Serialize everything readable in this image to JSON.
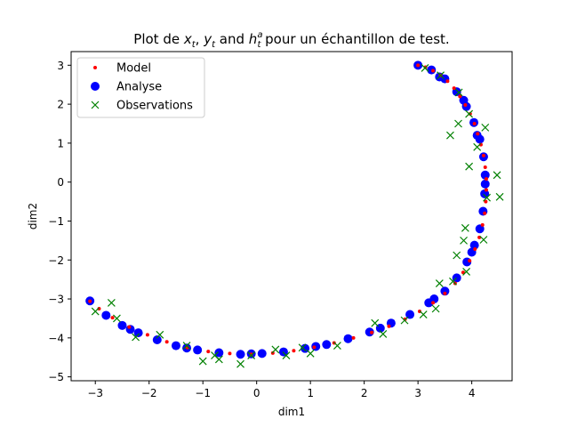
{
  "chart_data": {
    "type": "scatter",
    "title": {
      "prefix": "Plot de ",
      "v1": "x",
      "v1_sub": "t",
      "sep": ", ",
      "v2": "y",
      "v2_sub": "t",
      "mid": " and ",
      "v3": "h",
      "v3_sub": "t",
      "v3_sup": "a",
      "suffix": " pour un échantillon de test."
    },
    "xlabel": "dim1",
    "ylabel": "dim2",
    "xlim": [
      -3.45,
      4.75
    ],
    "ylim": [
      -5.1,
      3.35
    ],
    "xticks": [
      -3,
      -2,
      -1,
      0,
      1,
      2,
      3,
      4
    ],
    "yticks": [
      -5,
      -4,
      -3,
      -2,
      -1,
      0,
      1,
      2,
      3
    ],
    "xtick_labels": [
      "−3",
      "−2",
      "−1",
      "0",
      "1",
      "2",
      "3",
      "4"
    ],
    "ytick_labels": [
      "−5",
      "−4",
      "−3",
      "−2",
      "−1",
      "0",
      "1",
      "2",
      "3"
    ],
    "grid": false,
    "legend": {
      "position": "top-left",
      "entries": [
        "Model",
        "Analyse",
        "Observations"
      ]
    },
    "series": [
      {
        "name": "Model",
        "marker": "small-dot",
        "color": "#ff0000",
        "points": [
          [
            3.0,
            3.0
          ],
          [
            3.14,
            2.95
          ],
          [
            3.28,
            2.86
          ],
          [
            3.42,
            2.74
          ],
          [
            3.55,
            2.59
          ],
          [
            3.67,
            2.41
          ],
          [
            3.78,
            2.2
          ],
          [
            3.88,
            1.98
          ],
          [
            3.97,
            1.75
          ],
          [
            4.05,
            1.5
          ],
          [
            4.11,
            1.24
          ],
          [
            4.17,
            0.96
          ],
          [
            4.22,
            0.68
          ],
          [
            4.25,
            0.38
          ],
          [
            4.27,
            0.08
          ],
          [
            4.27,
            -0.2
          ],
          [
            4.26,
            -0.5
          ],
          [
            4.24,
            -0.8
          ],
          [
            4.2,
            -1.1
          ],
          [
            4.14,
            -1.42
          ],
          [
            4.06,
            -1.72
          ],
          [
            3.96,
            -2.02
          ],
          [
            3.84,
            -2.32
          ],
          [
            3.69,
            -2.6
          ],
          [
            3.5,
            -2.86
          ],
          [
            3.28,
            -3.1
          ],
          [
            3.03,
            -3.32
          ],
          [
            2.76,
            -3.52
          ],
          [
            2.46,
            -3.7
          ],
          [
            2.14,
            -3.86
          ],
          [
            1.8,
            -4.0
          ],
          [
            1.44,
            -4.13
          ],
          [
            1.07,
            -4.24
          ],
          [
            0.69,
            -4.33
          ],
          [
            0.3,
            -4.39
          ],
          [
            -0.1,
            -4.42
          ],
          [
            -0.5,
            -4.4
          ],
          [
            -0.9,
            -4.35
          ],
          [
            -1.29,
            -4.25
          ],
          [
            -1.67,
            -4.1
          ],
          [
            -2.03,
            -3.92
          ],
          [
            -2.37,
            -3.72
          ],
          [
            -2.68,
            -3.48
          ],
          [
            -2.93,
            -3.25
          ],
          [
            -3.1,
            -3.06
          ]
        ]
      },
      {
        "name": "Analyse",
        "marker": "dot",
        "color": "#0000ff",
        "points": [
          [
            3.0,
            3.0
          ],
          [
            3.25,
            2.88
          ],
          [
            3.5,
            2.65
          ],
          [
            3.72,
            2.32
          ],
          [
            3.9,
            1.94
          ],
          [
            4.04,
            1.53
          ],
          [
            4.15,
            1.1
          ],
          [
            4.22,
            0.65
          ],
          [
            4.25,
            0.18
          ],
          [
            4.24,
            -0.3
          ],
          [
            4.21,
            -0.75
          ],
          [
            4.15,
            -1.2
          ],
          [
            4.05,
            -1.62
          ],
          [
            3.91,
            -2.05
          ],
          [
            3.72,
            -2.46
          ],
          [
            3.5,
            -2.8
          ],
          [
            3.2,
            -3.1
          ],
          [
            2.85,
            -3.4
          ],
          [
            2.5,
            -3.62
          ],
          [
            2.1,
            -3.85
          ],
          [
            1.7,
            -4.02
          ],
          [
            1.3,
            -4.17
          ],
          [
            0.9,
            -4.27
          ],
          [
            0.5,
            -4.36
          ],
          [
            0.1,
            -4.4
          ],
          [
            -0.3,
            -4.42
          ],
          [
            -0.7,
            -4.38
          ],
          [
            -1.1,
            -4.31
          ],
          [
            -1.5,
            -4.2
          ],
          [
            -1.85,
            -4.05
          ],
          [
            -2.2,
            -3.87
          ],
          [
            -2.5,
            -3.68
          ],
          [
            -2.8,
            -3.42
          ],
          [
            -3.1,
            -3.05
          ],
          [
            3.4,
            2.7
          ],
          [
            3.85,
            2.1
          ],
          [
            4.1,
            1.2
          ],
          [
            4.25,
            -0.05
          ],
          [
            4.0,
            -1.8
          ],
          [
            3.3,
            -3.0
          ],
          [
            2.3,
            -3.75
          ],
          [
            1.1,
            -4.22
          ],
          [
            -0.1,
            -4.41
          ],
          [
            -1.3,
            -4.26
          ],
          [
            -2.35,
            -3.78
          ]
        ]
      },
      {
        "name": "Observations",
        "marker": "x",
        "color": "#008000",
        "points": [
          [
            3.13,
            2.93
          ],
          [
            3.42,
            2.74
          ],
          [
            3.76,
            2.3
          ],
          [
            3.95,
            1.75
          ],
          [
            4.25,
            1.4
          ],
          [
            4.1,
            0.9
          ],
          [
            4.47,
            0.18
          ],
          [
            4.28,
            -0.4
          ],
          [
            4.52,
            -0.38
          ],
          [
            4.22,
            -1.48
          ],
          [
            3.85,
            -1.5
          ],
          [
            3.4,
            -2.6
          ],
          [
            3.65,
            -2.55
          ],
          [
            3.33,
            -3.25
          ],
          [
            2.75,
            -3.55
          ],
          [
            2.35,
            -3.9
          ],
          [
            2.2,
            -3.62
          ],
          [
            1.5,
            -4.2
          ],
          [
            0.85,
            -4.25
          ],
          [
            0.55,
            -4.45
          ],
          [
            0.35,
            -4.3
          ],
          [
            -0.3,
            -4.67
          ],
          [
            -0.7,
            -4.55
          ],
          [
            -0.78,
            -4.45
          ],
          [
            -1.3,
            -4.2
          ],
          [
            -1.8,
            -3.92
          ],
          [
            -2.25,
            -3.98
          ],
          [
            -2.7,
            -3.1
          ],
          [
            -3.0,
            -3.32
          ],
          [
            3.75,
            1.5
          ],
          [
            3.6,
            1.2
          ],
          [
            3.95,
            0.4
          ],
          [
            3.88,
            -1.18
          ],
          [
            3.72,
            -1.88
          ],
          [
            3.9,
            -2.3
          ],
          [
            3.1,
            -3.4
          ],
          [
            1.0,
            -4.4
          ],
          [
            -0.1,
            -4.45
          ],
          [
            -1.0,
            -4.6
          ],
          [
            -2.6,
            -3.5
          ]
        ]
      }
    ]
  }
}
